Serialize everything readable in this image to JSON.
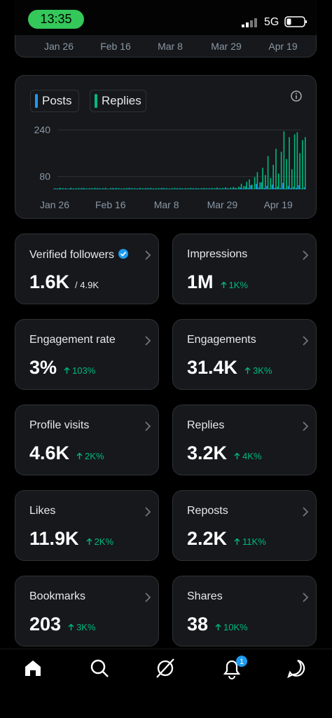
{
  "status_bar": {
    "time": "13:35",
    "network": "5G"
  },
  "top_card": {
    "xticks": [
      "Jan 26",
      "Feb 16",
      "Mar 8",
      "Mar 29",
      "Apr 19"
    ]
  },
  "chart_data": {
    "type": "bar",
    "categories": [
      null,
      null,
      "Jan 26",
      null,
      null,
      null,
      null,
      null,
      null,
      null,
      null,
      null,
      null,
      null,
      null,
      null,
      null,
      null,
      null,
      null,
      null,
      null,
      null,
      "Feb 16",
      null,
      null,
      null,
      null,
      null,
      null,
      null,
      null,
      null,
      null,
      null,
      null,
      null,
      null,
      null,
      null,
      null,
      null,
      null,
      null,
      "Mar 8",
      null,
      null,
      null,
      null,
      null,
      null,
      null,
      null,
      null,
      null,
      null,
      null,
      null,
      null,
      null,
      null,
      null,
      null,
      null,
      null,
      "Mar 29",
      null,
      null,
      null,
      null,
      null,
      null,
      null,
      null,
      null,
      null,
      null,
      null,
      null,
      null,
      null,
      null,
      null,
      null,
      null,
      null,
      "Apr 19",
      null,
      null,
      null,
      null,
      null,
      null,
      null,
      null
    ],
    "series": [
      {
        "name": "Posts",
        "color": "#1d9bf0",
        "values": [
          38,
          38,
          39,
          38,
          38,
          38,
          39,
          38,
          38,
          38,
          38,
          39,
          38,
          38,
          38,
          38,
          38,
          39,
          38,
          38,
          38,
          38,
          39,
          38,
          38,
          38,
          38,
          38,
          39,
          38,
          38,
          38,
          38,
          38,
          38,
          39,
          38,
          38,
          38,
          38,
          38,
          39,
          38,
          38,
          38,
          38,
          38,
          38,
          39,
          38,
          38,
          38,
          38,
          38,
          39,
          38,
          38,
          38,
          38,
          38,
          38,
          39,
          38,
          38,
          38,
          39,
          38,
          38,
          40,
          38,
          42,
          39,
          45,
          40,
          50,
          38,
          55,
          42,
          60,
          40,
          48,
          39,
          52,
          41,
          45,
          40,
          58,
          39,
          47,
          40,
          44,
          41,
          50,
          39,
          42
        ]
      },
      {
        "name": "Replies",
        "color": "#00ba7c",
        "values": [
          40,
          39,
          41,
          40,
          40,
          38,
          41,
          39,
          40,
          40,
          41,
          40,
          39,
          40,
          40,
          41,
          40,
          39,
          40,
          41,
          38,
          40,
          40,
          41,
          40,
          39,
          40,
          40,
          41,
          40,
          40,
          39,
          41,
          40,
          40,
          40,
          41,
          39,
          40,
          40,
          41,
          40,
          40,
          39,
          40,
          41,
          40,
          40,
          39,
          40,
          40,
          41,
          40,
          40,
          39,
          40,
          41,
          40,
          40,
          41,
          40,
          42,
          40,
          41,
          43,
          40,
          42,
          44,
          41,
          45,
          55,
          48,
          62,
          70,
          52,
          78,
          95,
          60,
          110,
          85,
          150,
          75,
          120,
          175,
          90,
          165,
          235,
          140,
          215,
          105,
          225,
          232,
          160,
          205,
          215
        ]
      }
    ],
    "ylim": [
      36,
      243
    ],
    "yticks": [
      240,
      80
    ],
    "grid": true
  },
  "metrics": [
    {
      "label": "Verified followers",
      "value": "1.6K",
      "total": "/ 4.9K"
    },
    {
      "label": "Impressions",
      "value": "1M",
      "change": "1K%"
    },
    {
      "label": "Engagement rate",
      "value": "3%",
      "change": "103%"
    },
    {
      "label": "Engagements",
      "value": "31.4K",
      "change": "3K%"
    },
    {
      "label": "Profile visits",
      "value": "4.6K",
      "change": "2K%"
    },
    {
      "label": "Replies",
      "value": "3.2K",
      "change": "4K%"
    },
    {
      "label": "Likes",
      "value": "11.9K",
      "change": "2K%"
    },
    {
      "label": "Reposts",
      "value": "2.2K",
      "change": "11K%"
    },
    {
      "label": "Bookmarks",
      "value": "203",
      "change": "3K%"
    },
    {
      "label": "Shares",
      "value": "38",
      "change": "10K%"
    }
  ],
  "nav": {
    "notification_badge": "1"
  }
}
